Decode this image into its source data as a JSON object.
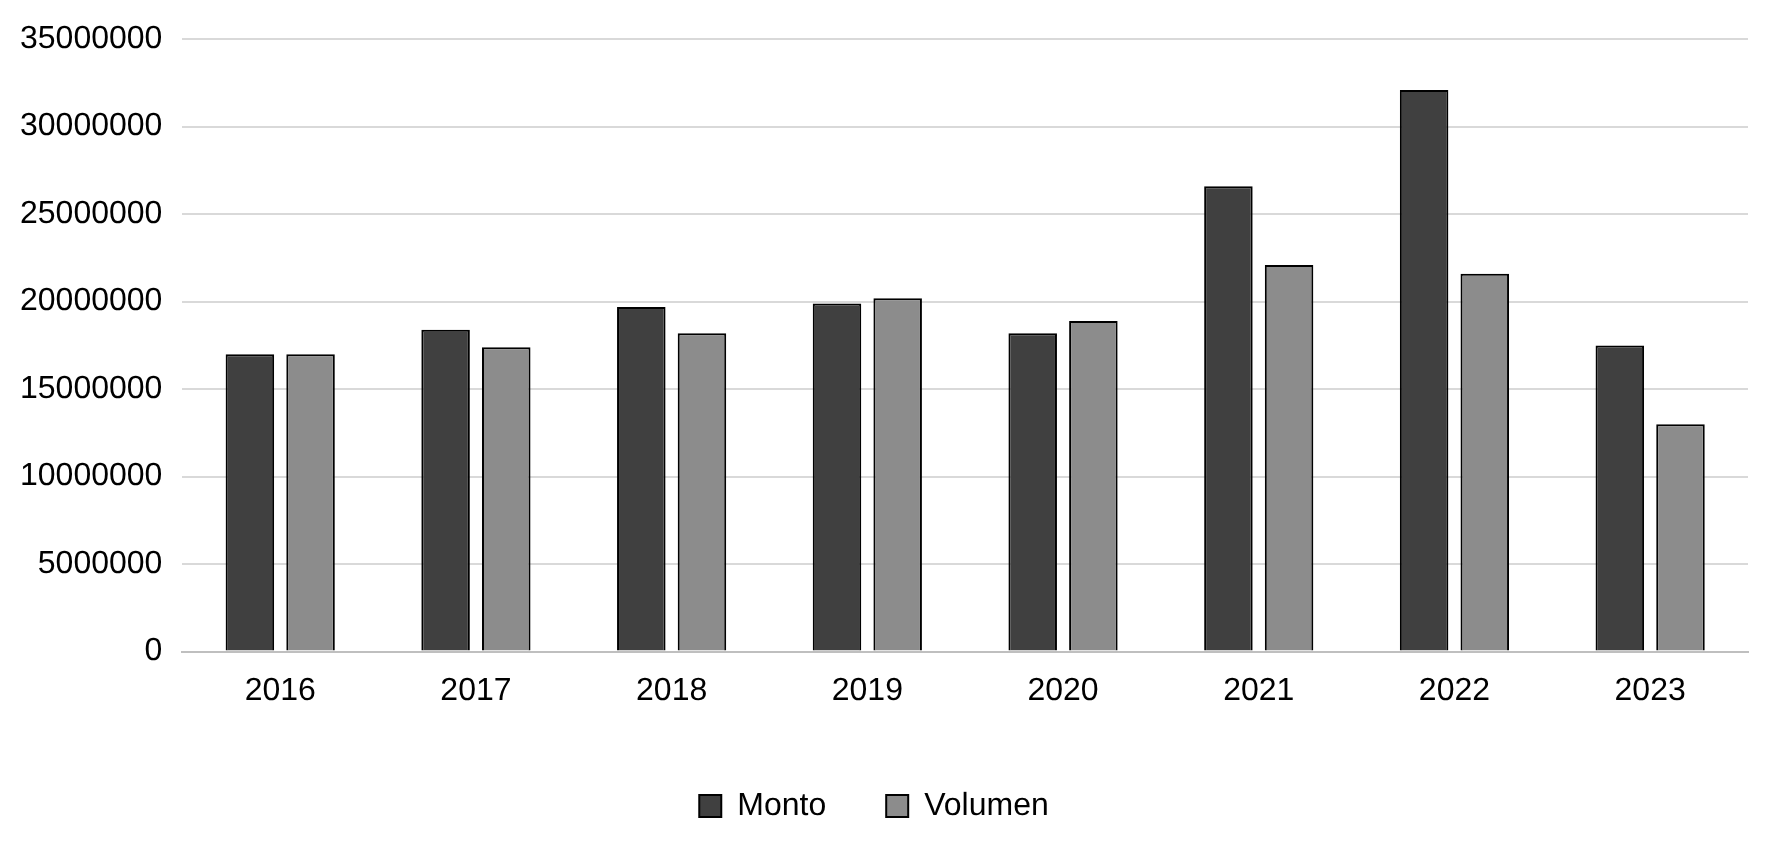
{
  "chart_data": {
    "type": "bar",
    "categories": [
      "2016",
      "2017",
      "2018",
      "2019",
      "2020",
      "2021",
      "2022",
      "2023"
    ],
    "series": [
      {
        "name": "Monto",
        "color": "#404040",
        "values": [
          17000000,
          18400000,
          19700000,
          19900000,
          18200000,
          26600000,
          32100000,
          17500000
        ]
      },
      {
        "name": "Volumen",
        "color": "#8c8c8c",
        "values": [
          17000000,
          17400000,
          18200000,
          20200000,
          18900000,
          22100000,
          21600000,
          13000000
        ]
      }
    ],
    "ylim": [
      0,
      35000000
    ],
    "yticks": [
      0,
      5000000,
      10000000,
      15000000,
      20000000,
      25000000,
      30000000,
      35000000
    ],
    "grid": "y",
    "legend": "bottom"
  }
}
